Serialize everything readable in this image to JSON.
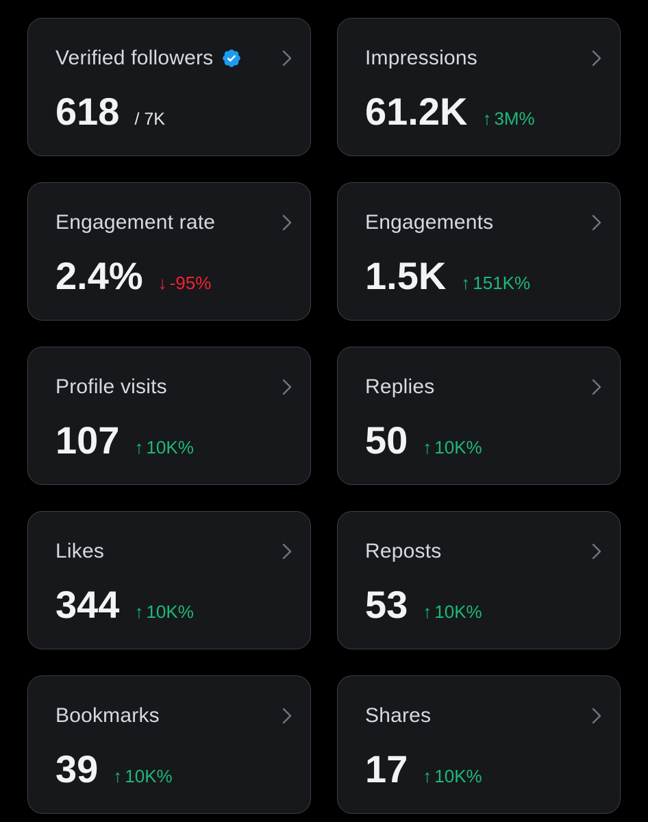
{
  "colors": {
    "background": "#000000",
    "card_background": "#16181c",
    "card_border": "#3b3f45",
    "positive": "#1fb877",
    "negative": "#f4212e",
    "verified_badge": "#1d9bf0"
  },
  "cards": [
    {
      "title": "Verified followers",
      "value": "618",
      "suffix": "/ 7K",
      "verified_icon": "verified-badge-icon"
    },
    {
      "title": "Impressions",
      "value": "61.2K",
      "change": "3M%",
      "arrow": "↑",
      "direction": "up"
    },
    {
      "title": "Engagement rate",
      "value": "2.4%",
      "change": "-95%",
      "arrow": "↓",
      "direction": "down"
    },
    {
      "title": "Engagements",
      "value": "1.5K",
      "change": "151K%",
      "arrow": "↑",
      "direction": "up"
    },
    {
      "title": "Profile visits",
      "value": "107",
      "change": "10K%",
      "arrow": "↑",
      "direction": "up"
    },
    {
      "title": "Replies",
      "value": "50",
      "change": "10K%",
      "arrow": "↑",
      "direction": "up"
    },
    {
      "title": "Likes",
      "value": "344",
      "change": "10K%",
      "arrow": "↑",
      "direction": "up"
    },
    {
      "title": "Reposts",
      "value": "53",
      "change": "10K%",
      "arrow": "↑",
      "direction": "up"
    },
    {
      "title": "Bookmarks",
      "value": "39",
      "change": "10K%",
      "arrow": "↑",
      "direction": "up"
    },
    {
      "title": "Shares",
      "value": "17",
      "change": "10K%",
      "arrow": "↑",
      "direction": "up"
    }
  ]
}
